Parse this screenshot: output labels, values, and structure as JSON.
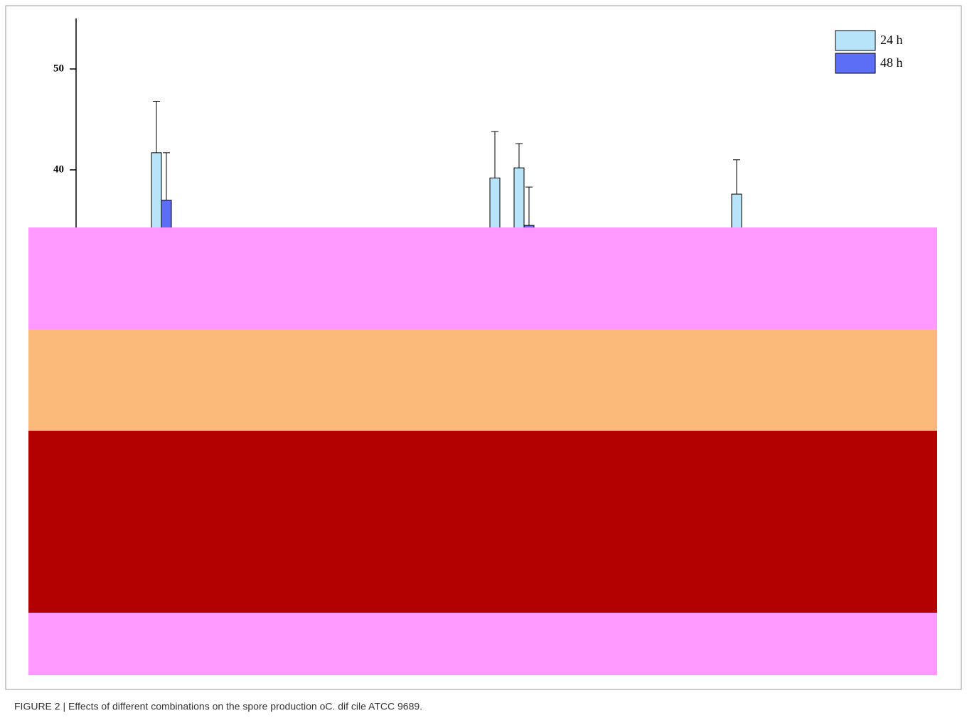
{
  "chart_data": {
    "type": "bar",
    "caption": "FIGURE 2 | Effects of different combinations on the spore production oC. dif cile ATCC 9689.",
    "categories": [
      null,
      null,
      null,
      null,
      null,
      null,
      null,
      null,
      null,
      null,
      null,
      null,
      null,
      null,
      null,
      null,
      null,
      null,
      null,
      null,
      null,
      null,
      null,
      null,
      null,
      null,
      null,
      null,
      null,
      null,
      null,
      null,
      null,
      null,
      null
    ],
    "series": [
      {
        "name": "24 h",
        "color": "#b8e4fa",
        "values": [
          null,
          null,
          null,
          null,
          null,
          41.7,
          null,
          null,
          null,
          null,
          null,
          null,
          null,
          null,
          null,
          null,
          null,
          null,
          null,
          39.2,
          40.2,
          null,
          null,
          null,
          null,
          null,
          null,
          null,
          null,
          37.6,
          null,
          null,
          null,
          null,
          null
        ],
        "errors": [
          null,
          null,
          null,
          null,
          null,
          5.1,
          null,
          null,
          null,
          null,
          null,
          null,
          null,
          null,
          null,
          null,
          null,
          null,
          null,
          4.6,
          2.4,
          null,
          null,
          null,
          null,
          null,
          null,
          null,
          null,
          3.4,
          null,
          null,
          null,
          null,
          null
        ]
      },
      {
        "name": "48 h",
        "color": "#5b6ef5",
        "values": [
          null,
          null,
          null,
          null,
          null,
          37.0,
          null,
          null,
          null,
          null,
          null,
          null,
          null,
          null,
          null,
          null,
          null,
          null,
          null,
          null,
          34.5,
          null,
          null,
          null,
          null,
          null,
          null,
          null,
          null,
          null,
          null,
          null,
          null,
          null,
          null
        ],
        "errors": [
          null,
          null,
          null,
          null,
          null,
          4.7,
          null,
          null,
          null,
          null,
          null,
          null,
          null,
          null,
          null,
          null,
          null,
          null,
          null,
          null,
          3.8,
          null,
          null,
          null,
          null,
          null,
          null,
          null,
          null,
          null,
          null,
          null,
          null,
          null,
          null
        ]
      }
    ],
    "ylim": [
      0,
      55
    ],
    "yticks": [
      40,
      50
    ],
    "legend": "top-right"
  }
}
